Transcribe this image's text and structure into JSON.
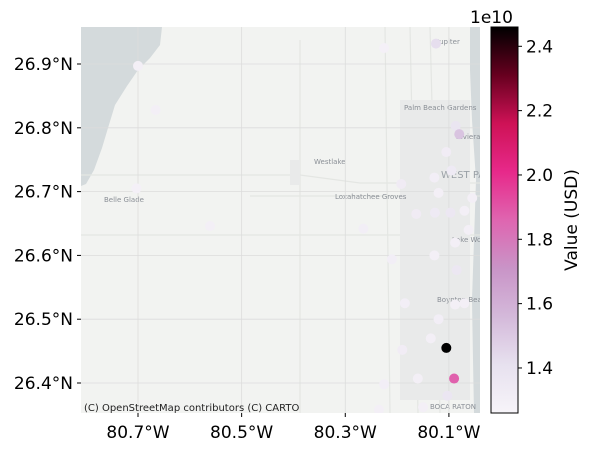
{
  "chart_data": {
    "type": "scatter",
    "map": {
      "basemap": "CartoDB Positron",
      "attribution": "(C) OpenStreetMap contributors (C) CARTO",
      "place_labels": [
        "Jupiter",
        "Palm Beach Gardens",
        "Riviera Beach",
        "Westlake",
        "WEST PALM BEACH",
        "Loxahatchee Groves",
        "Belle Glade",
        "Lake Worth Beach",
        "Boynton Beach",
        "BOCA RATON"
      ],
      "land_color": "#f2f3f1",
      "water_color": "#d4dadc"
    },
    "xlim": [
      -80.81,
      -80.04
    ],
    "ylim": [
      26.353,
      26.958
    ],
    "x_ticks": [
      {
        "value": -80.7,
        "label": "80.7°W"
      },
      {
        "value": -80.5,
        "label": "80.5°W"
      },
      {
        "value": -80.3,
        "label": "80.3°W"
      },
      {
        "value": -80.1,
        "label": "80.1°W"
      }
    ],
    "y_ticks": [
      {
        "value": 26.4,
        "label": "26.4°N"
      },
      {
        "value": 26.5,
        "label": "26.5°N"
      },
      {
        "value": 26.6,
        "label": "26.6°N"
      },
      {
        "value": 26.7,
        "label": "26.7°N"
      },
      {
        "value": 26.8,
        "label": "26.8°N"
      },
      {
        "value": 26.9,
        "label": "26.9°N"
      }
    ],
    "grid": true,
    "colorbar": {
      "label": "Value (USD)",
      "offset_text": "1e10",
      "min": 1.26,
      "max": 2.46,
      "ticks": [
        1.4,
        1.6,
        1.8,
        2.0,
        2.2,
        2.4
      ],
      "tick_labels": [
        "1.4",
        "1.6",
        "1.8",
        "2.0",
        "2.2",
        "2.4"
      ],
      "colormap": "PuRd"
    },
    "points": [
      {
        "lon": -80.125,
        "lat": 26.932,
        "value": 1.42
      },
      {
        "lon": -80.7,
        "lat": 26.897,
        "value": 1.3
      },
      {
        "lon": -80.225,
        "lat": 26.925,
        "value": 1.29
      },
      {
        "lon": -80.666,
        "lat": 26.828,
        "value": 1.3
      },
      {
        "lon": -80.08,
        "lat": 26.79,
        "value": 1.52
      },
      {
        "lon": -80.087,
        "lat": 26.803,
        "value": 1.38
      },
      {
        "lon": -80.105,
        "lat": 26.762,
        "value": 1.32
      },
      {
        "lon": -80.095,
        "lat": 26.733,
        "value": 1.34
      },
      {
        "lon": -80.128,
        "lat": 26.722,
        "value": 1.31
      },
      {
        "lon": -80.192,
        "lat": 26.712,
        "value": 1.33
      },
      {
        "lon": -80.055,
        "lat": 26.69,
        "value": 1.3
      },
      {
        "lon": -80.12,
        "lat": 26.698,
        "value": 1.3
      },
      {
        "lon": -80.703,
        "lat": 26.705,
        "value": 1.29
      },
      {
        "lon": -80.163,
        "lat": 26.665,
        "value": 1.33
      },
      {
        "lon": -80.127,
        "lat": 26.667,
        "value": 1.34
      },
      {
        "lon": -80.097,
        "lat": 26.667,
        "value": 1.36
      },
      {
        "lon": -80.07,
        "lat": 26.67,
        "value": 1.3
      },
      {
        "lon": -80.062,
        "lat": 26.64,
        "value": 1.3
      },
      {
        "lon": -80.561,
        "lat": 26.646,
        "value": 1.3
      },
      {
        "lon": -80.265,
        "lat": 26.642,
        "value": 1.31
      },
      {
        "lon": -80.088,
        "lat": 26.62,
        "value": 1.3
      },
      {
        "lon": -80.128,
        "lat": 26.6,
        "value": 1.3
      },
      {
        "lon": -80.21,
        "lat": 26.594,
        "value": 1.31
      },
      {
        "lon": -80.085,
        "lat": 26.577,
        "value": 1.36
      },
      {
        "lon": -80.185,
        "lat": 26.525,
        "value": 1.31
      },
      {
        "lon": -80.07,
        "lat": 26.525,
        "value": 1.3
      },
      {
        "lon": -80.088,
        "lat": 26.523,
        "value": 1.3
      },
      {
        "lon": -80.12,
        "lat": 26.5,
        "value": 1.31
      },
      {
        "lon": -80.135,
        "lat": 26.47,
        "value": 1.3
      },
      {
        "lon": -80.19,
        "lat": 26.452,
        "value": 1.32
      },
      {
        "lon": -80.105,
        "lat": 26.455,
        "value": 2.46
      },
      {
        "lon": -80.09,
        "lat": 26.407,
        "value": 1.87
      },
      {
        "lon": -80.16,
        "lat": 26.407,
        "value": 1.3
      },
      {
        "lon": -80.225,
        "lat": 26.398,
        "value": 1.31
      },
      {
        "lon": -80.103,
        "lat": 26.38,
        "value": 1.37
      },
      {
        "lon": -80.15,
        "lat": 26.362,
        "value": 1.3
      },
      {
        "lon": -80.235,
        "lat": 26.358,
        "value": 1.3
      }
    ]
  }
}
